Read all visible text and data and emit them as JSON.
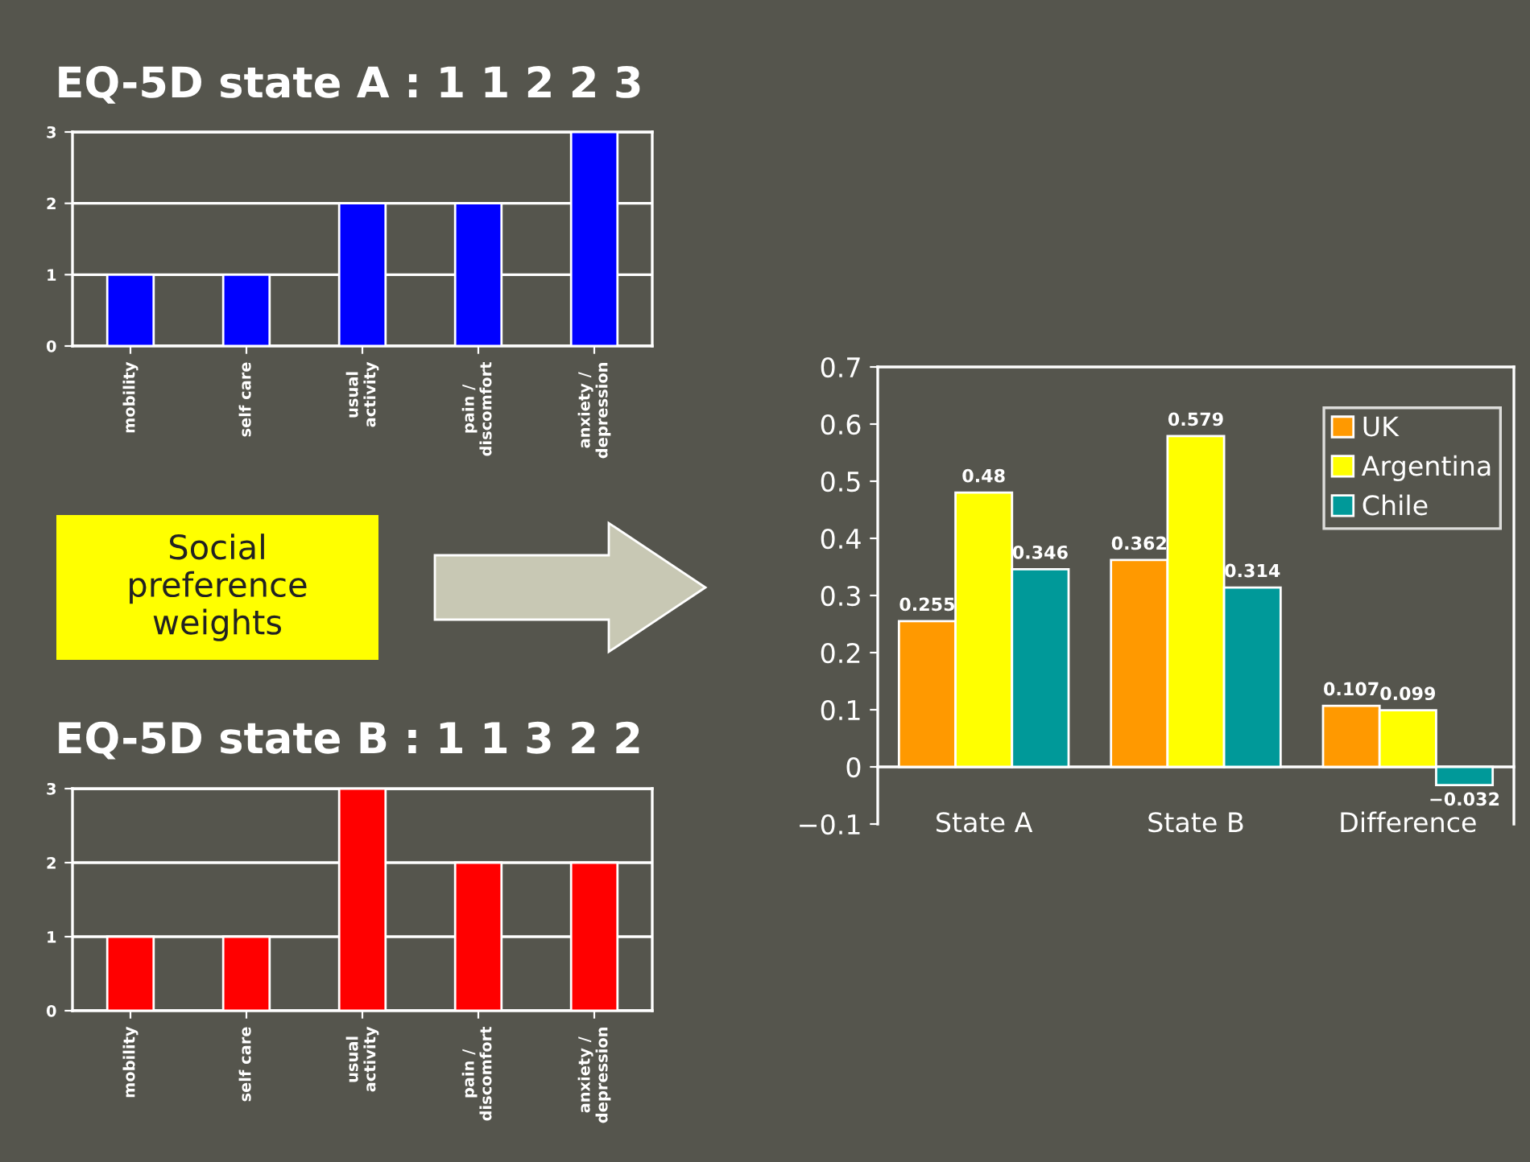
{
  "chart_data": [
    {
      "type": "bar",
      "title": "EQ-5D state A : 1 1 2 2 3",
      "categories": [
        "mobility",
        "self care",
        "usual\nactivity",
        "pain /\ndiscomfort",
        "anxiety /\ndepression"
      ],
      "values": [
        1,
        1,
        2,
        2,
        3
      ],
      "color": "#0000ff",
      "ylim": [
        0,
        3
      ],
      "yticks": [
        0,
        1,
        2,
        3
      ],
      "grid": "y"
    },
    {
      "type": "bar",
      "title": "EQ-5D state B : 1 1 3 2 2",
      "categories": [
        "mobility",
        "self care",
        "usual\nactivity",
        "pain /\ndiscomfort",
        "anxiety /\ndepression"
      ],
      "values": [
        1,
        1,
        3,
        2,
        2
      ],
      "color": "#ff0000",
      "ylim": [
        0,
        3
      ],
      "yticks": [
        0,
        1,
        2,
        3
      ],
      "grid": "y"
    },
    {
      "type": "bar",
      "categories": [
        "State A",
        "State B",
        "Difference"
      ],
      "series": [
        {
          "name": "UK",
          "color": "#ff9900",
          "values": [
            0.255,
            0.362,
            0.107
          ]
        },
        {
          "name": "Argentina",
          "color": "#ffff00",
          "values": [
            0.48,
            0.579,
            0.099
          ]
        },
        {
          "name": "Chile",
          "color": "#009999",
          "values": [
            0.346,
            0.314,
            -0.032
          ]
        }
      ],
      "ylim": [
        -0.1,
        0.7
      ],
      "yticks": [
        -0.1,
        0,
        0.1,
        0.2,
        0.3,
        0.4,
        0.5,
        0.6,
        0.7
      ],
      "data_labels": true,
      "legend": "top right",
      "annotations": [
        "Social\npreference\nweights"
      ]
    }
  ]
}
